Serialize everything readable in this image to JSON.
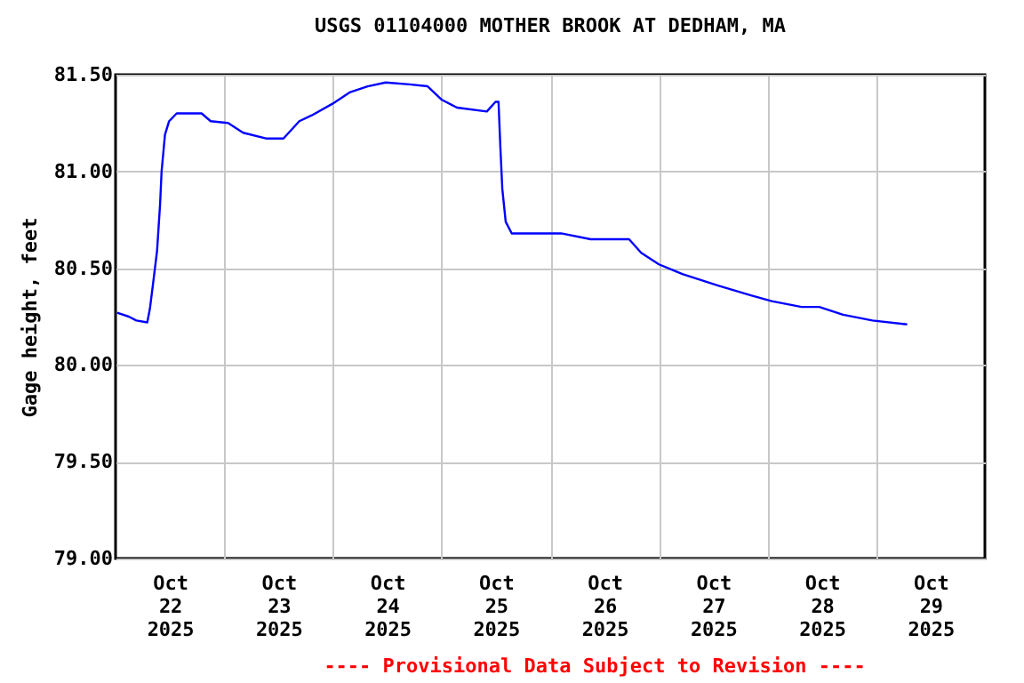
{
  "chart_data": {
    "type": "line",
    "title": "USGS 01104000 MOTHER BROOK AT DEDHAM, MA",
    "ylabel": "Gage height, feet",
    "annotations": [
      "---- Provisional Data Subject to Revision ----"
    ],
    "x": [
      "2025-10-22T00:20",
      "2025-10-22T02:55",
      "2025-10-22T04:35",
      "2025-10-22T07:00",
      "2025-10-22T07:35",
      "2025-10-22T08:20",
      "2025-10-22T09:10",
      "2025-10-22T09:50",
      "2025-10-22T10:10",
      "2025-10-22T10:55",
      "2025-10-22T11:50",
      "2025-10-22T13:30",
      "2025-10-22T19:00",
      "2025-10-22T21:00",
      "2025-10-23T00:55",
      "2025-10-23T04:10",
      "2025-10-23T09:25",
      "2025-10-23T13:05",
      "2025-10-23T16:35",
      "2025-10-23T19:20",
      "2025-10-23T23:55",
      "2025-10-24T03:50",
      "2025-10-24T07:40",
      "2025-10-24T11:40",
      "2025-10-24T16:55",
      "2025-10-24T20:55",
      "2025-10-25T00:05",
      "2025-10-25T03:25",
      "2025-10-25T10:00",
      "2025-10-25T11:55",
      "2025-10-25T12:35",
      "2025-10-25T13:00",
      "2025-10-25T13:25",
      "2025-10-25T14:10",
      "2025-10-25T15:30",
      "2025-10-26T02:25",
      "2025-10-26T08:55",
      "2025-10-26T17:25",
      "2025-10-26T20:05",
      "2025-10-27T00:00",
      "2025-10-27T05:10",
      "2025-10-27T13:05",
      "2025-10-27T20:20",
      "2025-10-28T00:55",
      "2025-10-28T07:30",
      "2025-10-28T11:25",
      "2025-10-28T16:40",
      "2025-10-28T23:10",
      "2025-10-29T06:50"
    ],
    "series": [
      {
        "color": "#0000ff",
        "values": [
          80.27,
          80.25,
          80.23,
          80.22,
          80.29,
          80.43,
          80.59,
          80.83,
          81.0,
          81.19,
          81.26,
          81.3,
          81.3,
          81.26,
          81.25,
          81.2,
          81.17,
          81.17,
          81.26,
          81.29,
          81.35,
          81.41,
          81.44,
          81.46,
          81.45,
          81.44,
          81.37,
          81.33,
          81.31,
          81.36,
          81.36,
          81.12,
          80.91,
          80.74,
          80.68,
          80.68,
          80.65,
          80.65,
          80.58,
          80.52,
          80.47,
          80.41,
          80.36,
          80.33,
          80.3,
          80.3,
          80.26,
          80.23,
          80.21
        ]
      }
    ],
    "xlim": [
      "2025-10-22T00:00",
      "2025-10-30T00:00"
    ],
    "xticks": [
      {
        "value": "2025-10-22T12:00",
        "label": "Oct 22 2025"
      },
      {
        "value": "2025-10-23T00:00",
        "label": null
      },
      {
        "value": "2025-10-23T12:00",
        "label": "Oct 23 2025"
      },
      {
        "value": "2025-10-24T00:00",
        "label": null
      },
      {
        "value": "2025-10-24T12:00",
        "label": "Oct 24 2025"
      },
      {
        "value": "2025-10-25T00:00",
        "label": null
      },
      {
        "value": "2025-10-25T12:00",
        "label": "Oct 25 2025"
      },
      {
        "value": "2025-10-26T00:00",
        "label": null
      },
      {
        "value": "2025-10-26T12:00",
        "label": "Oct 26 2025"
      },
      {
        "value": "2025-10-27T00:00",
        "label": null
      },
      {
        "value": "2025-10-27T12:00",
        "label": "Oct 27 2025"
      },
      {
        "value": "2025-10-28T00:00",
        "label": null
      },
      {
        "value": "2025-10-28T12:00",
        "label": "Oct 28 2025"
      },
      {
        "value": "2025-10-29T00:00",
        "label": null
      },
      {
        "value": "2025-10-29T12:00",
        "label": "Oct 29 2025"
      }
    ],
    "ylim": [
      79.0,
      81.5
    ],
    "yticks": [
      {
        "value": 79.0,
        "label": "79.00"
      },
      {
        "value": 79.5,
        "label": "79.50"
      },
      {
        "value": 80.0,
        "label": "80.00"
      },
      {
        "value": 80.5,
        "label": "80.50"
      },
      {
        "value": 81.0,
        "label": "81.00"
      },
      {
        "value": 81.5,
        "label": "81.50"
      }
    ],
    "grid": true,
    "legend": false,
    "marker": "none",
    "line_style": "solid"
  }
}
